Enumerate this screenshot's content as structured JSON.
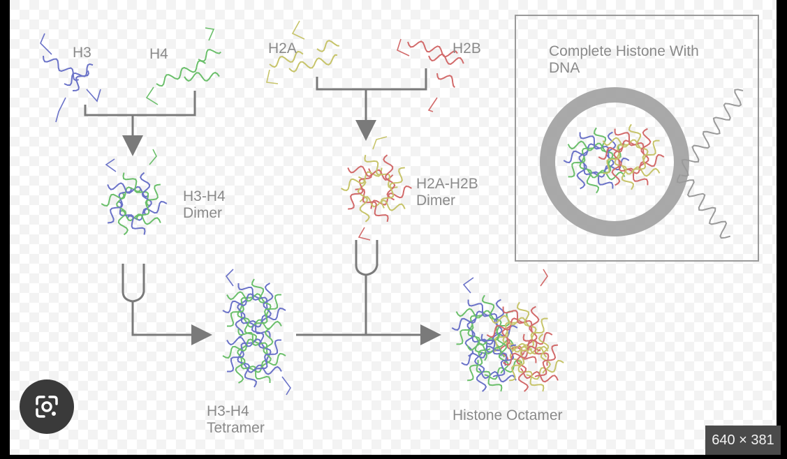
{
  "labels": {
    "h3": "H3",
    "h4": "H4",
    "h2a": "H2A",
    "h2b": "H2B",
    "complete_line1": "Complete Histone With",
    "complete_line2": "DNA",
    "h3h4_dimer_line1": "H3-H4",
    "h3h4_dimer_line2": "Dimer",
    "h2ah2b_dimer_line1": "H2A-H2B",
    "h2ah2b_dimer_line2": "Dimer",
    "tetramer_line1": "H3-H4",
    "tetramer_line2": "Tetramer",
    "octamer": "Histone Octamer"
  },
  "image_size_badge": "640 × 381",
  "colors": {
    "h3": "#6a72c8",
    "h4": "#6bbf6b",
    "h2a": "#c7c46a",
    "h2b": "#d26a6a",
    "dna": "#9a9a9a",
    "arrow": "#7a7a7a",
    "label": "#8a8a8a"
  },
  "icons": {
    "lens": "google-lens-icon"
  }
}
